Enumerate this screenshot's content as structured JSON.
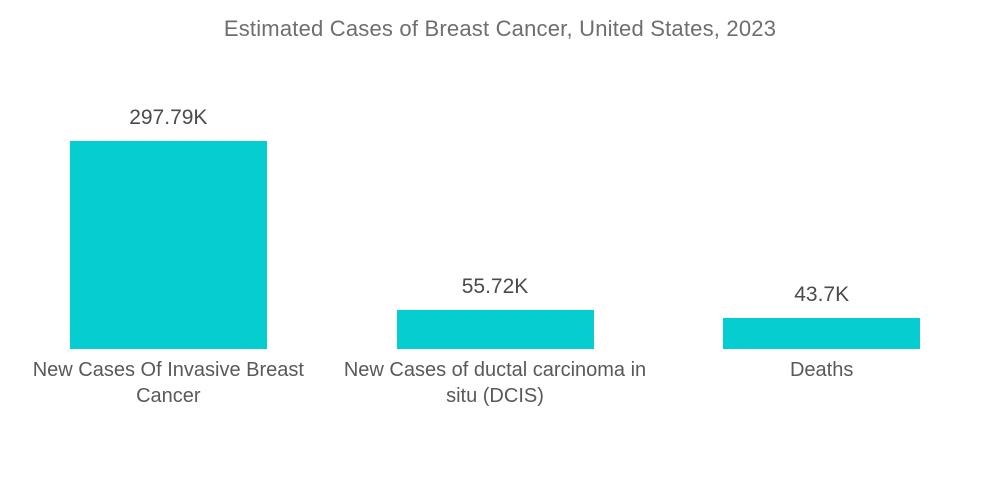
{
  "page": {
    "background": "#FFFFFF"
  },
  "chart_data": {
    "type": "bar",
    "title": "Estimated Cases of Breast Cancer, United States, 2023",
    "categories": [
      "New Cases Of Invasive Breast Cancer",
      "New Cases of ductal carcinoma in situ (DCIS)",
      "Deaths"
    ],
    "values": [
      297.79,
      55.72,
      43.7
    ],
    "value_labels": [
      "297.79K",
      "55.72K",
      "43.7K"
    ],
    "unit": "K",
    "xlabel": "",
    "ylabel": "",
    "grid": false,
    "legend": false,
    "orientation": "vertical",
    "bar_color": "#06CDCF",
    "title_color": "#6E6E6E",
    "value_label_color": "#4B4B4B",
    "category_label_color": "#595959"
  }
}
